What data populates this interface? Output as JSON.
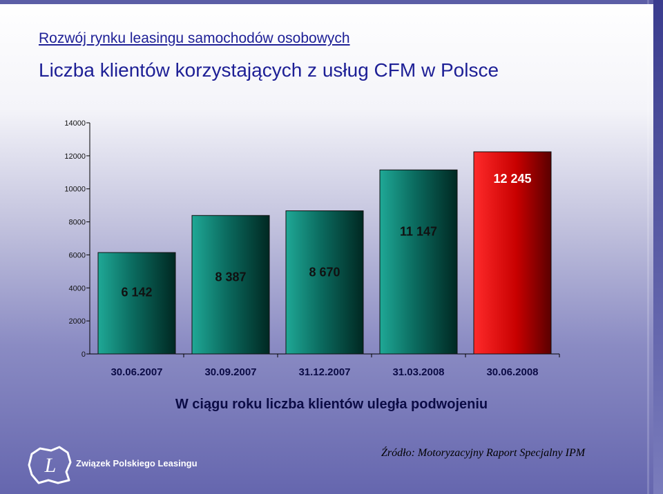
{
  "slide": {
    "title": "Rozwój rynku leasingu samochodów osobowych",
    "subtitle": "Liczba klientów korzystających z usług CFM w Polsce",
    "headline": "W ciągu roku liczba klientów uległa podwojeniu",
    "source": "Źródło: Motoryzacyjny Raport Specjalny IPM",
    "logo_text": "Związek Polskiego Leasingu",
    "logo_letter": "L"
  },
  "colors": {
    "title": "#1e2096",
    "bar_teal_light": "#1fa896",
    "bar_teal_dark": "#002822",
    "bar_red_light": "#ff2a2a",
    "bar_red_dark": "#5a0000",
    "data_label_dark": "#111111",
    "data_label_light": "#ffffff"
  },
  "chart_data": {
    "type": "bar",
    "categories": [
      "30.06.2007",
      "30.09.2007",
      "31.12.2007",
      "31.03.2008",
      "30.06.2008"
    ],
    "values": [
      6142,
      8387,
      8670,
      11147,
      12245
    ],
    "data_labels": [
      "6 142",
      "8 387",
      "8 670",
      "11 147",
      "12 245"
    ],
    "highlight_index": 4,
    "ylim": [
      0,
      14000
    ],
    "yticks": [
      0,
      2000,
      4000,
      6000,
      8000,
      10000,
      12000,
      14000
    ],
    "grid": false,
    "legend": "none",
    "xlabel": "",
    "ylabel": ""
  }
}
